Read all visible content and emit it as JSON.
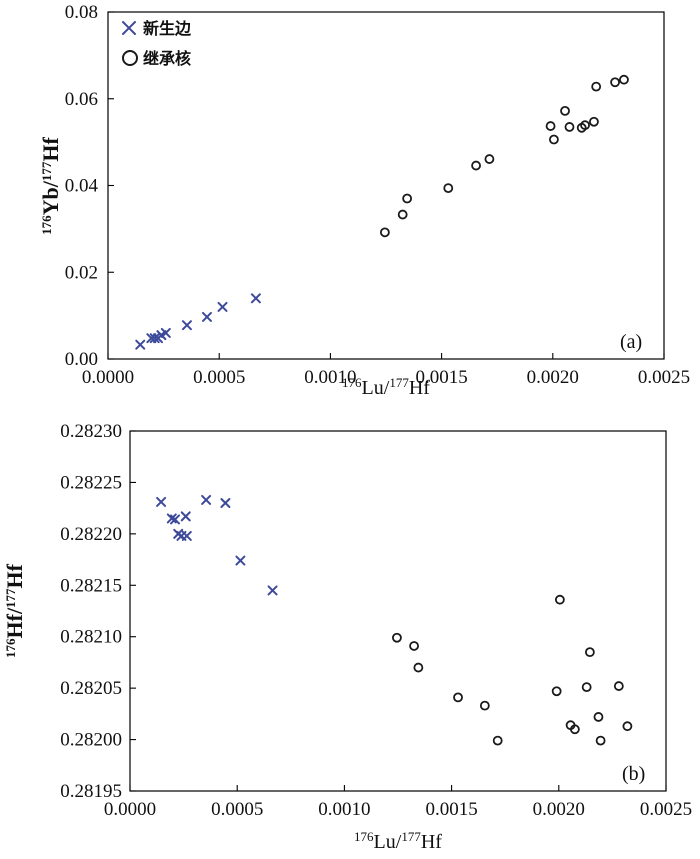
{
  "legend": {
    "rim_label": "新生边",
    "core_label": "继承核"
  },
  "colors": {
    "rim": "#3d4a9a",
    "core": "#1a1a1a",
    "axis": "#000000"
  },
  "chart_data": [
    {
      "type": "scatter",
      "panel_label": "(a)",
      "xlabel": {
        "sup1": "176",
        "base1": "Lu/",
        "sup2": "177",
        "base2": "Hf"
      },
      "ylabel": {
        "sup1": "176",
        "base1": "Yb/",
        "sup2": "177",
        "base2": "Hf"
      },
      "xlim": [
        0,
        0.0025
      ],
      "ylim": [
        0,
        0.08
      ],
      "x_ticks": [
        {
          "value": 0.0,
          "label": "0.0000"
        },
        {
          "value": 0.0005,
          "label": "0.0005"
        },
        {
          "value": 0.001,
          "label": "0.0010"
        },
        {
          "value": 0.0015,
          "label": "0.0015"
        },
        {
          "value": 0.002,
          "label": "0.0020"
        },
        {
          "value": 0.0025,
          "label": "0.0025"
        }
      ],
      "y_ticks": [
        {
          "value": 0.0,
          "label": "0.00"
        },
        {
          "value": 0.02,
          "label": "0.02"
        },
        {
          "value": 0.04,
          "label": "0.04"
        },
        {
          "value": 0.06,
          "label": "0.06"
        },
        {
          "value": 0.08,
          "label": "0.08"
        }
      ],
      "series": [
        {
          "name": "新生边",
          "marker": "x",
          "points": [
            [
              0.000145,
              0.0033
            ],
            [
              0.000195,
              0.0048
            ],
            [
              0.00021,
              0.0048
            ],
            [
              0.000225,
              0.0048
            ],
            [
              0.00024,
              0.0055
            ],
            [
              0.00026,
              0.006
            ],
            [
              0.000355,
              0.0078
            ],
            [
              0.000445,
              0.0097
            ],
            [
              0.000515,
              0.012
            ],
            [
              0.000665,
              0.014
            ]
          ]
        },
        {
          "name": "继承核",
          "marker": "o",
          "points": [
            [
              0.001245,
              0.0292
            ],
            [
              0.001325,
              0.0333
            ],
            [
              0.001345,
              0.037
            ],
            [
              0.00153,
              0.0394
            ],
            [
              0.001655,
              0.0446
            ],
            [
              0.001715,
              0.0461
            ],
            [
              0.00199,
              0.0537
            ],
            [
              0.002005,
              0.0506
            ],
            [
              0.002055,
              0.0572
            ],
            [
              0.002075,
              0.0535
            ],
            [
              0.00213,
              0.0533
            ],
            [
              0.002145,
              0.0539
            ],
            [
              0.002185,
              0.0547
            ],
            [
              0.002195,
              0.0628
            ],
            [
              0.00228,
              0.0638
            ],
            [
              0.00232,
              0.0644
            ]
          ]
        }
      ]
    },
    {
      "type": "scatter",
      "panel_label": "(b)",
      "xlabel": {
        "sup1": "176",
        "base1": "Lu/",
        "sup2": "177",
        "base2": "Hf"
      },
      "ylabel": {
        "sup1": "176",
        "base1": "Hf/",
        "sup2": "177",
        "base2": "Hf"
      },
      "xlim": [
        0,
        0.0025
      ],
      "ylim": [
        0.28195,
        0.2823
      ],
      "x_ticks": [
        {
          "value": 0.0,
          "label": "0.0000"
        },
        {
          "value": 0.0005,
          "label": "0.0005"
        },
        {
          "value": 0.001,
          "label": "0.0010"
        },
        {
          "value": 0.0015,
          "label": "0.0015"
        },
        {
          "value": 0.002,
          "label": "0.0020"
        },
        {
          "value": 0.0025,
          "label": "0.0025"
        }
      ],
      "y_ticks": [
        {
          "value": 0.28195,
          "label": "0.28195"
        },
        {
          "value": 0.282,
          "label": "0.28200"
        },
        {
          "value": 0.28205,
          "label": "0.28205"
        },
        {
          "value": 0.2821,
          "label": "0.28210"
        },
        {
          "value": 0.28215,
          "label": "0.28215"
        },
        {
          "value": 0.2822,
          "label": "0.28220"
        },
        {
          "value": 0.28225,
          "label": "0.28225"
        },
        {
          "value": 0.2823,
          "label": "0.28230"
        }
      ],
      "series": [
        {
          "name": "新生边",
          "marker": "x",
          "points": [
            [
              0.000145,
              0.282231
            ],
            [
              0.000195,
              0.282215
            ],
            [
              0.00021,
              0.282214
            ],
            [
              0.000225,
              0.2822
            ],
            [
              0.00024,
              0.282198
            ],
            [
              0.00026,
              0.282217
            ],
            [
              0.000265,
              0.282198
            ],
            [
              0.000355,
              0.282233
            ],
            [
              0.000445,
              0.28223
            ],
            [
              0.000515,
              0.282174
            ],
            [
              0.000665,
              0.282145
            ]
          ]
        },
        {
          "name": "继承核",
          "marker": "o",
          "points": [
            [
              0.001245,
              0.282099
            ],
            [
              0.001325,
              0.282091
            ],
            [
              0.001345,
              0.28207
            ],
            [
              0.00153,
              0.282041
            ],
            [
              0.001655,
              0.282033
            ],
            [
              0.001715,
              0.281999
            ],
            [
              0.00199,
              0.282047
            ],
            [
              0.002005,
              0.282136
            ],
            [
              0.002055,
              0.282014
            ],
            [
              0.002075,
              0.28201
            ],
            [
              0.00213,
              0.282051
            ],
            [
              0.002145,
              0.282085
            ],
            [
              0.002185,
              0.282022
            ],
            [
              0.002195,
              0.281999
            ],
            [
              0.00228,
              0.282052
            ],
            [
              0.00232,
              0.282013
            ]
          ]
        }
      ]
    }
  ]
}
